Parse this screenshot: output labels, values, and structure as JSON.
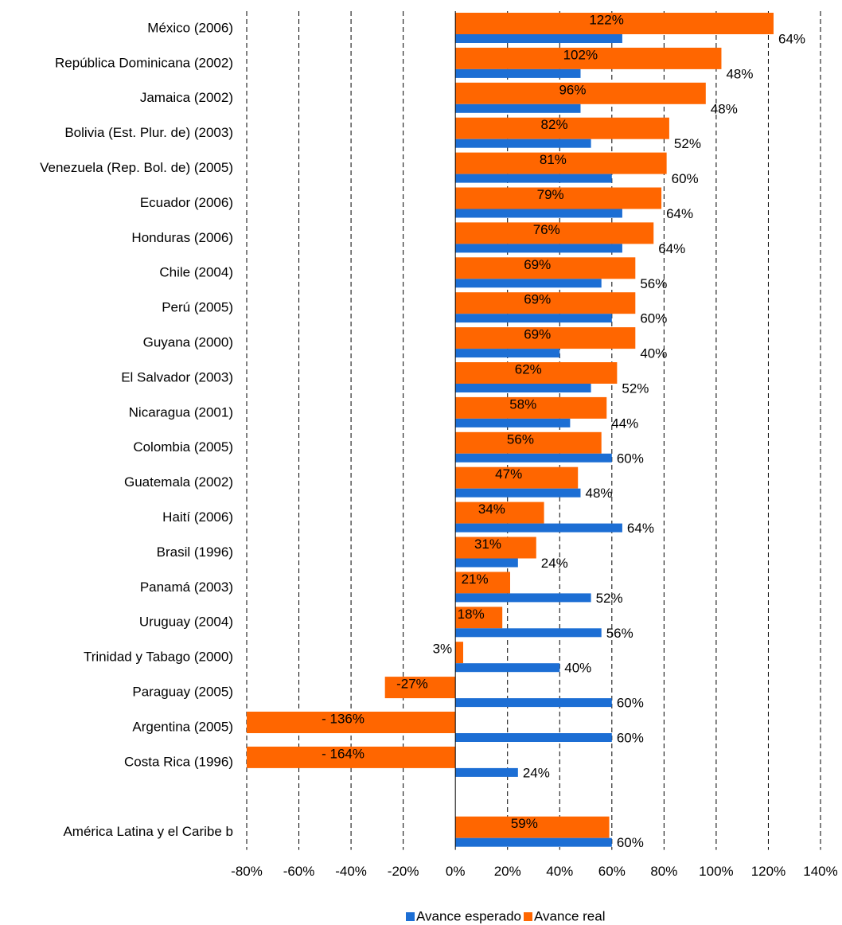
{
  "chart_data": {
    "type": "bar",
    "orientation": "horizontal",
    "categories": [
      "México (2006)",
      "República Dominicana (2002)",
      "Jamaica (2002)",
      "Bolivia (Est. Plur. de) (2003)",
      "Venezuela (Rep. Bol. de) (2005)",
      "Ecuador (2006)",
      "Honduras (2006)",
      "Chile (2004)",
      "Perú (2005)",
      "Guyana (2000)",
      "El Salvador (2003)",
      "Nicaragua (2001)",
      "Colombia (2005)",
      "Guatemala (2002)",
      "Haití (2006)",
      "Brasil (1996)",
      "Panamá (2003)",
      "Uruguay (2004)",
      "Trinidad y Tabago (2000)",
      "Paraguay (2005)",
      "Argentina (2005)",
      "Costa Rica (1996)",
      null,
      "América Latina y el Caribe b"
    ],
    "series": [
      {
        "name": "Avance real",
        "color": "#ff6600",
        "values": [
          122,
          102,
          96,
          82,
          81,
          79,
          76,
          69,
          69,
          69,
          62,
          58,
          56,
          47,
          34,
          31,
          21,
          18,
          3,
          -27,
          -136,
          -164,
          null,
          59
        ],
        "value_labels": [
          "122%",
          "102%",
          "96%",
          "82%",
          "81%",
          "79%",
          "76%",
          "69%",
          "69%",
          "69%",
          "62%",
          "58%",
          "56%",
          "47%",
          "34%",
          "31%",
          "21%",
          "18%",
          "3%",
          "-27%",
          "- 136%",
          "- 164%",
          null,
          "59%"
        ]
      },
      {
        "name": "Avance esperado",
        "color": "#1c6ed4",
        "values": [
          64,
          48,
          48,
          52,
          60,
          64,
          64,
          56,
          60,
          40,
          52,
          44,
          60,
          48,
          64,
          24,
          52,
          56,
          40,
          60,
          60,
          24,
          null,
          60
        ],
        "value_labels": [
          "64%",
          "48%",
          "48%",
          "52%",
          "60%",
          "64%",
          "64%",
          "56%",
          "60%",
          "40%",
          "52%",
          "44%",
          "60%",
          "48%",
          "64%",
          "24%",
          "52%",
          "56%",
          "40%",
          "60%",
          "60%",
          "24%",
          null,
          "60%"
        ]
      }
    ],
    "xlim": [
      -80,
      140
    ],
    "xticks": [
      {
        "value": -80,
        "label": "-80%"
      },
      {
        "value": -60,
        "label": "-60%"
      },
      {
        "value": -40,
        "label": "-40%"
      },
      {
        "value": -20,
        "label": "-20%"
      },
      {
        "value": 0,
        "label": "0%"
      },
      {
        "value": 20,
        "label": "20%"
      },
      {
        "value": 40,
        "label": "40%"
      },
      {
        "value": 60,
        "label": "60%"
      },
      {
        "value": 80,
        "label": "80%"
      },
      {
        "value": 100,
        "label": "100%"
      },
      {
        "value": 120,
        "label": "120%"
      },
      {
        "value": 140,
        "label": "140%"
      }
    ],
    "grid": true,
    "legend": "bottom"
  }
}
